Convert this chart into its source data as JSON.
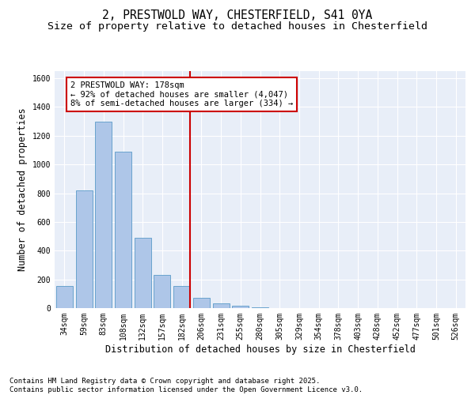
{
  "title_line1": "2, PRESTWOLD WAY, CHESTERFIELD, S41 0YA",
  "title_line2": "Size of property relative to detached houses in Chesterfield",
  "xlabel": "Distribution of detached houses by size in Chesterfield",
  "ylabel": "Number of detached properties",
  "categories": [
    "34sqm",
    "59sqm",
    "83sqm",
    "108sqm",
    "132sqm",
    "157sqm",
    "182sqm",
    "206sqm",
    "231sqm",
    "255sqm",
    "280sqm",
    "305sqm",
    "329sqm",
    "354sqm",
    "378sqm",
    "403sqm",
    "428sqm",
    "452sqm",
    "477sqm",
    "501sqm",
    "526sqm"
  ],
  "values": [
    155,
    820,
    1300,
    1090,
    490,
    230,
    155,
    70,
    35,
    15,
    5,
    2,
    1,
    1,
    0,
    0,
    0,
    0,
    0,
    0,
    0
  ],
  "bar_color": "#aec6e8",
  "bar_edge_color": "#5a9ac8",
  "vline_color": "#cc0000",
  "vline_index": 6,
  "annotation_text": "2 PRESTWOLD WAY: 178sqm\n← 92% of detached houses are smaller (4,047)\n8% of semi-detached houses are larger (334) →",
  "annotation_box_color": "#cc0000",
  "ylim": [
    0,
    1650
  ],
  "yticks": [
    0,
    200,
    400,
    600,
    800,
    1000,
    1200,
    1400,
    1600
  ],
  "bg_color": "#e8eef8",
  "footer_text": "Contains HM Land Registry data © Crown copyright and database right 2025.\nContains public sector information licensed under the Open Government Licence v3.0.",
  "title_fontsize": 10.5,
  "subtitle_fontsize": 9.5,
  "axis_label_fontsize": 8.5,
  "tick_fontsize": 7,
  "annotation_fontsize": 7.5,
  "footer_fontsize": 6.5
}
